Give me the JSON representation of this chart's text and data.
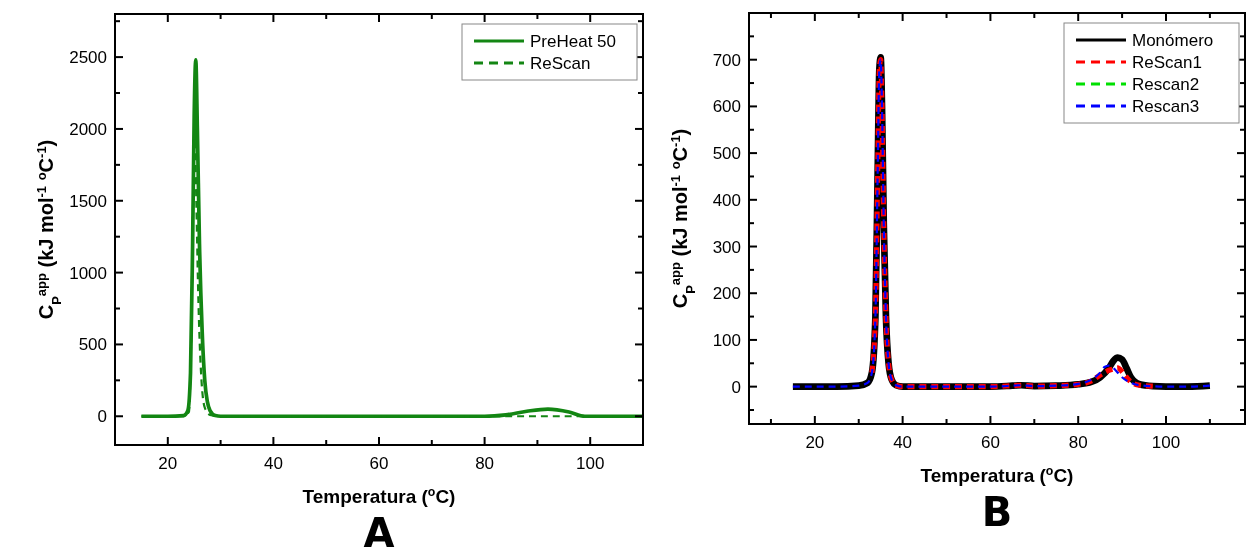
{
  "chart_data": [
    {
      "type": "line",
      "title": "A",
      "xlabel": "Temperatura ($^{o}$C)",
      "ylabel": "C$_{P}$$^{app}$ (kJ mol$^{-1}$ $^{o}$C$^{-1}$)",
      "xlim": [
        10,
        110
      ],
      "ylim": [
        -200,
        2800
      ],
      "xticks": [
        {
          "value": 10,
          "label": null
        },
        20,
        {
          "value": 30,
          "label": null
        },
        40,
        {
          "value": 50,
          "label": null
        },
        60,
        {
          "value": 70,
          "label": null
        },
        80,
        {
          "value": 90,
          "label": null
        },
        100
      ],
      "yticks": [
        0,
        {
          "value": 250,
          "label": null
        },
        500,
        {
          "value": 750,
          "label": null
        },
        1000,
        {
          "value": 1250,
          "label": null
        },
        1500,
        {
          "value": 1750,
          "label": null
        },
        2000,
        {
          "value": 2250,
          "label": null
        },
        2500,
        {
          "value": 2750,
          "label": null
        }
      ],
      "legend": "top right",
      "grid": false,
      "series": [
        {
          "name": "PreHeat 50",
          "color": "#138613",
          "line_style": "solid",
          "x": [
            15,
            20,
            23,
            23.8,
            24.3,
            24.7,
            25.0,
            25.3,
            25.6,
            26.0,
            26.5,
            27.0,
            27.5,
            28.0,
            29.0,
            30,
            40,
            60,
            80,
            84,
            88,
            92,
            96,
            99,
            105,
            110
          ],
          "values": [
            0,
            0,
            5,
            40,
            300,
            1200,
            2100,
            2480,
            2000,
            1200,
            600,
            250,
            100,
            40,
            5,
            0,
            0,
            0,
            0,
            10,
            35,
            50,
            30,
            0,
            0,
            0
          ]
        },
        {
          "name": "ReScan",
          "color": "#138613",
          "line_style": "dashed",
          "x": [
            15,
            20,
            23,
            24,
            24.4,
            24.8,
            25.1,
            25.4,
            25.8,
            26.3,
            27,
            28,
            30,
            60,
            84,
            88,
            92,
            96,
            98,
            110
          ],
          "values": [
            0,
            0,
            0,
            30,
            500,
            1500,
            2000,
            1500,
            800,
            300,
            60,
            10,
            0,
            0,
            0,
            0,
            0,
            0,
            0,
            0
          ]
        }
      ]
    },
    {
      "type": "line",
      "title": "B",
      "xlabel": "Temperatura ($^{o}$C)",
      "ylabel": "C$_{P}$$^{app}$ (kJ mol$^{-1}$ $^{o}$C$^{-1}$)",
      "xlim": [
        5,
        118
      ],
      "ylim": [
        -80,
        800
      ],
      "xticks": [
        {
          "value": 10,
          "label": null
        },
        20,
        {
          "value": 30,
          "label": null
        },
        40,
        {
          "value": 50,
          "label": null
        },
        60,
        {
          "value": 70,
          "label": null
        },
        80,
        {
          "value": 90,
          "label": null
        },
        100,
        {
          "value": 110,
          "label": null
        }
      ],
      "yticks": [
        {
          "value": -50,
          "label": null
        },
        0,
        {
          "value": 50,
          "label": null
        },
        100,
        {
          "value": 150,
          "label": null
        },
        200,
        {
          "value": 250,
          "label": null
        },
        300,
        {
          "value": 350,
          "label": null
        },
        400,
        {
          "value": 450,
          "label": null
        },
        500,
        {
          "value": 550,
          "label": null
        },
        600,
        {
          "value": 650,
          "label": null
        },
        700,
        {
          "value": 750,
          "label": null
        }
      ],
      "legend": "top right",
      "grid": false,
      "series": [
        {
          "name": "Monómero",
          "color": "#000000",
          "line_style": "solid",
          "x": [
            15,
            25,
            30,
            32,
            33,
            33.8,
            34.3,
            34.7,
            35.0,
            35.3,
            35.7,
            36.2,
            36.8,
            37.5,
            38.5,
            40,
            50,
            60,
            65,
            67,
            70,
            75,
            80,
            83,
            85,
            87,
            88,
            89,
            90,
            91,
            92,
            94,
            97,
            100,
            105,
            110
          ],
          "values": [
            0,
            0,
            2,
            8,
            30,
            150,
            450,
            680,
            705,
            600,
            350,
            150,
            50,
            15,
            3,
            0,
            0,
            0,
            2,
            3,
            1,
            2,
            5,
            10,
            20,
            40,
            55,
            62,
            58,
            40,
            20,
            5,
            1,
            0,
            0,
            2
          ]
        },
        {
          "name": "ReScan1",
          "color": "#ff0000",
          "line_style": "dashed",
          "x": [
            33,
            33.8,
            34.3,
            34.7,
            35.0,
            35.3,
            35.7,
            36.2,
            36.8,
            37.5,
            38.5,
            40,
            50,
            60,
            65,
            67,
            70,
            75,
            80,
            83,
            85,
            87,
            88,
            89,
            90,
            91,
            92,
            94,
            97
          ],
          "values": [
            30,
            150,
            450,
            680,
            700,
            600,
            350,
            150,
            50,
            15,
            3,
            0,
            0,
            0,
            2,
            3,
            1,
            2,
            5,
            12,
            25,
            35,
            38,
            40,
            32,
            20,
            10,
            3,
            1
          ]
        },
        {
          "name": "Rescan2",
          "color": "#00e000",
          "line_style": "dashed"
        },
        {
          "name": "Rescan3",
          "color": "#0000ff",
          "line_style": "dashed",
          "x": [
            15,
            25,
            30,
            32,
            33,
            33.8,
            34.3,
            34.7,
            35.0,
            35.3,
            35.7,
            36.2,
            36.8,
            37.5,
            38.5,
            40,
            50,
            60,
            65,
            67,
            70,
            75,
            80,
            83,
            85,
            86,
            87,
            88,
            89,
            90,
            92,
            94,
            97,
            100,
            105,
            110
          ],
          "values": [
            0,
            0,
            2,
            8,
            30,
            150,
            450,
            680,
            700,
            600,
            350,
            150,
            50,
            15,
            3,
            0,
            0,
            0,
            2,
            3,
            1,
            2,
            6,
            15,
            30,
            42,
            45,
            40,
            30,
            20,
            8,
            3,
            1,
            0,
            0,
            2
          ]
        }
      ]
    }
  ]
}
